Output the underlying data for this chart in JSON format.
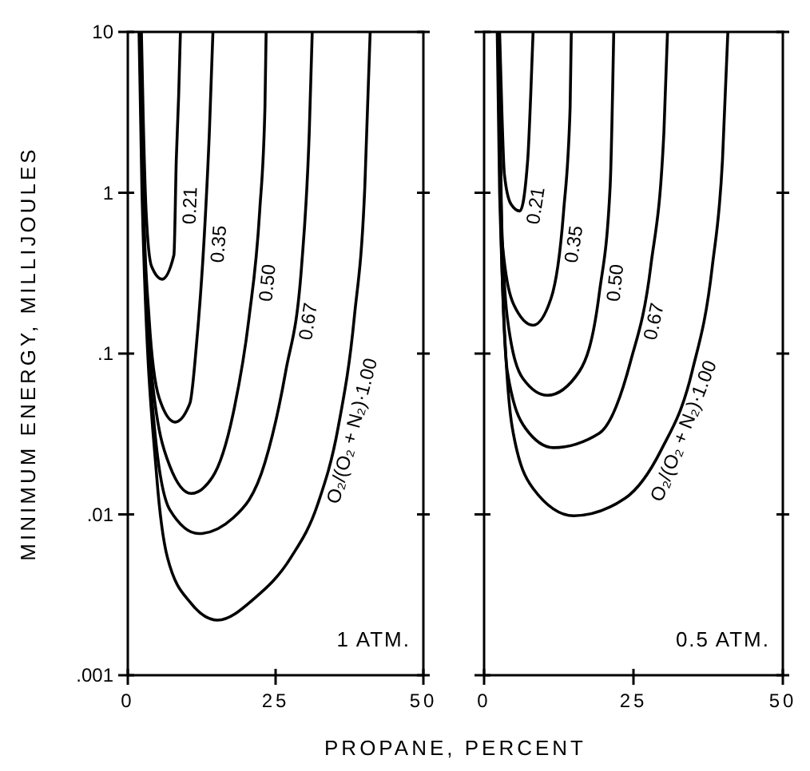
{
  "chart_data": [
    {
      "type": "line",
      "ylabel": "MINIMUM ENERGY, MILLIJOULES",
      "xlabel": "PROPANE, PERCENT",
      "log": "y",
      "xlim": [
        0,
        50
      ],
      "xticks": [
        0,
        25,
        50
      ],
      "ylim": [
        0.001,
        10
      ],
      "yticks": [
        {
          "value": 0.001,
          "label": ".001"
        },
        {
          "value": 0.01,
          "label": ".01"
        },
        {
          "value": 0.1,
          "label": ".1"
        },
        1,
        10
      ],
      "annotations": [
        "1 ATM."
      ],
      "series": [
        {
          "name": "0.21",
          "color": "#000000",
          "x": [
            2.3,
            2.6,
            3.1,
            4.0,
            5.8,
            7.8,
            8.2,
            8.6,
            8.9
          ],
          "values": [
            10,
            3,
            0.76,
            0.35,
            0.29,
            0.41,
            1.6,
            4,
            10
          ]
        },
        {
          "name": "0.35",
          "color": "#000000",
          "x": [
            2.2,
            2.6,
            3.6,
            5.3,
            8.0,
            10.5,
            11.6,
            12.9,
            13.8,
            14.4
          ],
          "values": [
            10,
            1,
            0.166,
            0.053,
            0.0375,
            0.049,
            0.112,
            0.51,
            2.4,
            10
          ]
        },
        {
          "name": "0.50",
          "color": "#000000",
          "x": [
            2.1,
            2.6,
            4.0,
            7.1,
            10.7,
            14.3,
            17.8,
            20.5,
            22.3,
            23.2,
            23.4
          ],
          "values": [
            10,
            1,
            0.077,
            0.02,
            0.0135,
            0.017,
            0.042,
            0.166,
            0.76,
            3.4,
            10
          ]
        },
        {
          "name": "0.67",
          "color": "#000000",
          "x": [
            2.0,
            2.5,
            4.5,
            7.1,
            12.0,
            17.8,
            23.2,
            26.7,
            29.4,
            30.7,
            31.2
          ],
          "values": [
            10,
            1,
            0.035,
            0.0107,
            0.0076,
            0.0095,
            0.021,
            0.077,
            0.35,
            2.4,
            10
          ]
        },
        {
          "name": "O₂/(O₂ + N₂)·1.00",
          "color": "#000000",
          "x": [
            1.9,
            2.4,
            4.9,
            6.7,
            10.7,
            15.2,
            21.4,
            27.6,
            32.1,
            35.6,
            38.3,
            40.1,
            41.0
          ],
          "values": [
            10,
            1,
            0.017,
            0.0054,
            0.0028,
            0.0022,
            0.003,
            0.0054,
            0.0115,
            0.035,
            0.166,
            1.1,
            10
          ]
        }
      ]
    },
    {
      "type": "line",
      "log": "y",
      "tick_labels": "x",
      "xlim": [
        0,
        50
      ],
      "xticks": [
        0,
        25,
        50
      ],
      "ylim": [
        0.001,
        10
      ],
      "yticks": [
        {
          "value": 0.001,
          "label": null
        },
        {
          "value": 0.01,
          "label": null
        },
        {
          "value": 0.1,
          "label": null
        },
        {
          "value": 1,
          "label": null
        },
        {
          "value": 10,
          "label": null
        }
      ],
      "annotations": [
        "0.5 ATM."
      ],
      "series": [
        {
          "name": "0.21",
          "color": "#000000",
          "x": [
            2.6,
            3.0,
            3.4,
            4.5,
            6.0,
            7.3,
            7.8,
            8.2
          ],
          "values": [
            10,
            3,
            1.3,
            0.85,
            0.77,
            1.6,
            4,
            10
          ]
        },
        {
          "name": "0.35",
          "color": "#000000",
          "x": [
            2.5,
            2.8,
            3.0,
            5.0,
            8.2,
            11.2,
            13.3,
            14.4,
            14.6
          ],
          "values": [
            10,
            1.5,
            0.51,
            0.2,
            0.15,
            0.22,
            0.76,
            3.4,
            10
          ]
        },
        {
          "name": "0.50",
          "color": "#000000",
          "x": [
            2.4,
            2.8,
            3.9,
            6.5,
            10.6,
            15.9,
            19.3,
            21.1,
            21.7
          ],
          "values": [
            10,
            1,
            0.166,
            0.07,
            0.055,
            0.077,
            0.24,
            1.1,
            10
          ]
        },
        {
          "name": "0.67",
          "color": "#000000",
          "x": [
            2.3,
            2.7,
            3.9,
            7.0,
            11.6,
            19.3,
            24.5,
            27.9,
            30.1,
            30.7
          ],
          "values": [
            10,
            1,
            0.077,
            0.034,
            0.026,
            0.032,
            0.089,
            0.35,
            2.4,
            10
          ]
        },
        {
          "name": "O₂/(O₂ + N₂)·1.00",
          "color": "#000000",
          "x": [
            2.2,
            2.6,
            4.7,
            8.2,
            15.0,
            23.6,
            29.6,
            34.8,
            38.2,
            39.9,
            40.8
          ],
          "values": [
            10,
            1,
            0.035,
            0.0145,
            0.0098,
            0.0126,
            0.025,
            0.077,
            0.35,
            1.6,
            10
          ]
        }
      ]
    }
  ]
}
